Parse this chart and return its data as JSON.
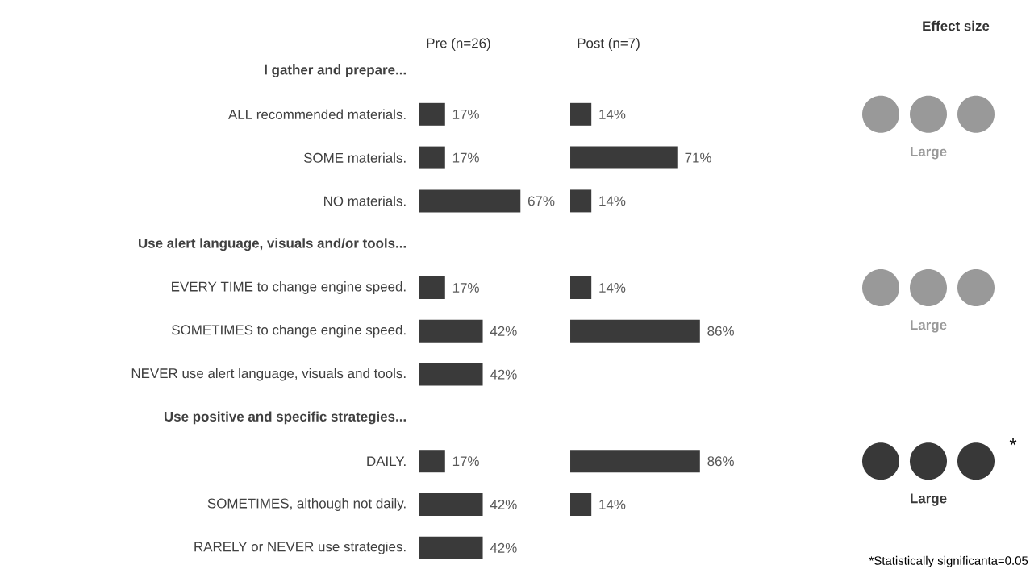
{
  "chart_data": [
    {
      "type": "bar",
      "orientation": "horizontal",
      "title": "Pre (n=26)",
      "color": "#3a3a3a",
      "tick_labels": "y",
      "categories": [
        "I gather and prepare...",
        "ALL recommended materials.",
        "SOME materials.",
        "NO materials.",
        "Use alert language, visuals and/or tools...",
        "EVERY TIME to change engine speed.",
        "SOMETIMES to change engine speed.",
        "NEVER use alert language, visuals and tools.",
        "Use positive and specific strategies...",
        "DAILY.",
        "SOMETIMES, although not daily.",
        "RARELY or NEVER use strategies."
      ],
      "values": [
        null,
        17,
        17,
        67,
        null,
        17,
        42,
        42,
        null,
        17,
        42,
        42
      ],
      "value_labels": [
        null,
        "17%",
        "17%",
        "67%",
        null,
        "17%",
        "42%",
        "42%",
        null,
        "17%",
        "42%",
        "42%"
      ]
    },
    {
      "type": "bar",
      "orientation": "horizontal",
      "title": "Post (n=7)",
      "color": "#3a3a3a",
      "categories": [
        null,
        null,
        null,
        null,
        null,
        null,
        null,
        null,
        null,
        null,
        null,
        null
      ],
      "values": [
        null,
        14,
        71,
        14,
        null,
        14,
        86,
        null,
        null,
        86,
        14,
        null
      ],
      "value_labels": [
        null,
        "14%",
        "71%",
        "14%",
        null,
        "14%",
        "86%",
        null,
        null,
        "86%",
        "14%",
        null
      ]
    },
    {
      "type": "other",
      "title": "Effect size",
      "annotations": [
        "Large",
        "Large",
        "Large",
        "*",
        "*Statistically significanta=0.05"
      ]
    }
  ]
}
